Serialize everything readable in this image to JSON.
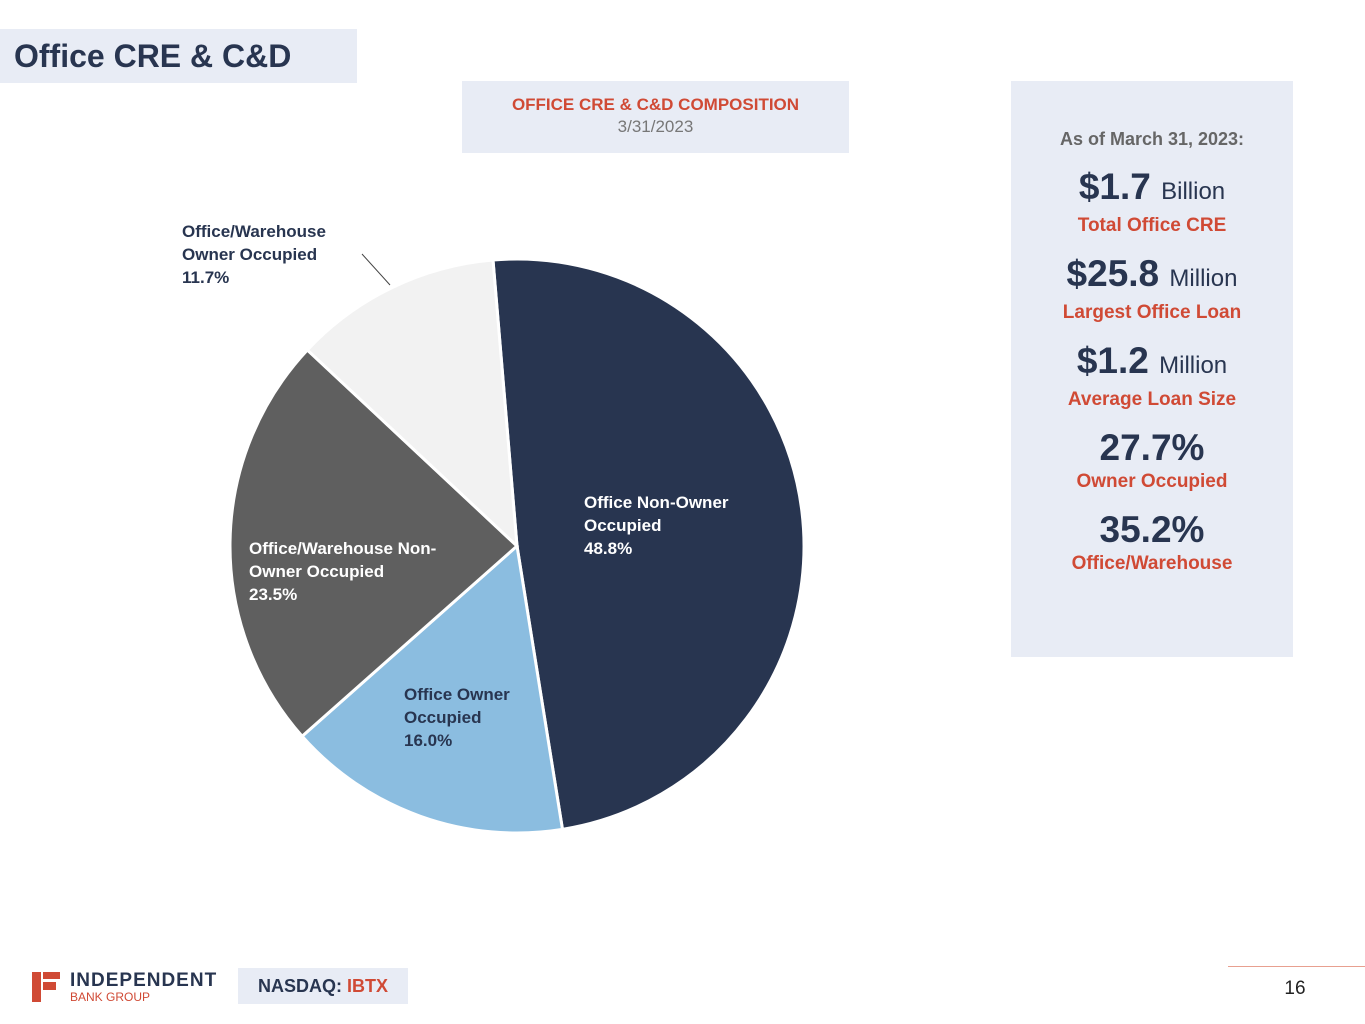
{
  "page_title": "Office CRE & C&D",
  "chart_data": {
    "type": "pie",
    "title": "OFFICE CRE & C&D COMPOSITION",
    "subtitle": "3/31/2023",
    "slices": [
      {
        "name_line1": "Office Non-Owner",
        "name_line2": "Occupied",
        "value": 48.8,
        "label": "48.8%",
        "color": "#283550"
      },
      {
        "name_line1": "Office Owner",
        "name_line2": "Occupied",
        "value": 16.0,
        "label": "16.0%",
        "color": "#8bbde0"
      },
      {
        "name_line1": "Office/Warehouse Non-",
        "name_line2": "Owner Occupied",
        "value": 23.5,
        "label": "23.5%",
        "color": "#5f5f5f"
      },
      {
        "name_line1": "Office/Warehouse",
        "name_line2": "Owner Occupied",
        "value": 11.7,
        "label": "11.7%",
        "color": "#f2f2f2"
      }
    ]
  },
  "panel": {
    "as_of": "As of March 31, 2023:",
    "stats": [
      {
        "value": "$1.7",
        "unit": "Billion",
        "caption": "Total Office CRE"
      },
      {
        "value": "$25.8",
        "unit": "Million",
        "caption": "Largest Office Loan"
      },
      {
        "value": "$1.2",
        "unit": "Million",
        "caption": "Average Loan Size"
      },
      {
        "value": "27.7%",
        "unit": "",
        "caption": "Owner Occupied"
      },
      {
        "value": "35.2%",
        "unit": "",
        "caption": "Office/Warehouse"
      }
    ]
  },
  "footer": {
    "logo_name": "INDEPENDENT",
    "logo_sub": "BANK GROUP",
    "nasdaq_label": "NASDAQ:",
    "ticker": "IBTX",
    "page_number": "16"
  }
}
